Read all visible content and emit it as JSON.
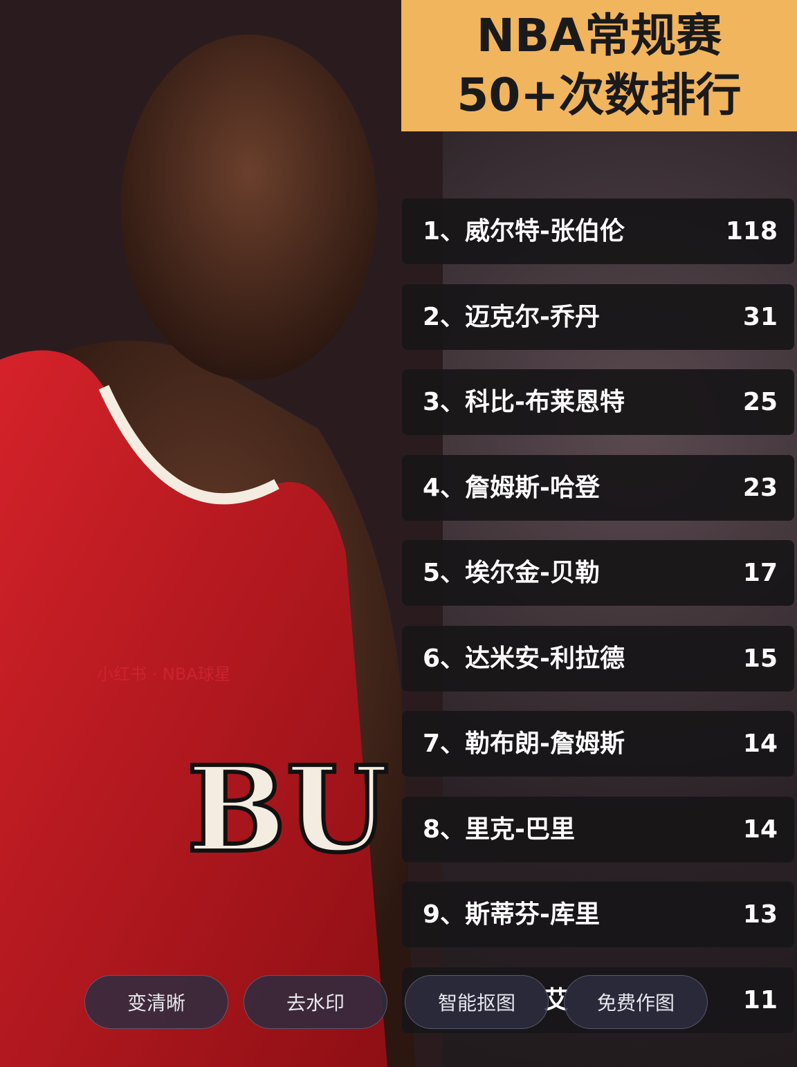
{
  "title": {
    "line1": "NBA常规赛",
    "line2": "50+次数排行"
  },
  "ranking": [
    {
      "name": "1、威尔特-张伯伦",
      "value": "118"
    },
    {
      "name": "2、迈克尔-乔丹",
      "value": "31"
    },
    {
      "name": "3、科比-布莱恩特",
      "value": "25"
    },
    {
      "name": "4、詹姆斯-哈登",
      "value": "23"
    },
    {
      "name": "5、埃尔金-贝勒",
      "value": "17"
    },
    {
      "name": "6、达米安-利拉德",
      "value": "15"
    },
    {
      "name": "7、勒布朗-詹姆斯",
      "value": "14"
    },
    {
      "name": "8、里克-巴里",
      "value": "14"
    },
    {
      "name": "9、斯蒂芬-库里",
      "value": "13"
    },
    {
      "name": "艾",
      "value": "11"
    }
  ],
  "watermark": "小红书 · NBA球星",
  "buttons": {
    "enhance": "变清晰",
    "remove_watermark": "去水印",
    "smart_cutout": "智能抠图",
    "free_design": "免费作图"
  },
  "colors": {
    "title_bg": "#f1b55e",
    "row_bg": "#181618",
    "jersey": "#c4161c"
  }
}
